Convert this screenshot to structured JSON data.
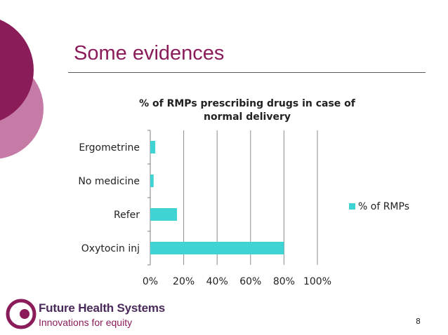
{
  "slide": {
    "title": "Some evidences",
    "page_number": "8",
    "brand_name": "Future Health Systems",
    "brand_tagline": "Innovations for equity"
  },
  "colors": {
    "accent": "#8a1c5a",
    "accent_light": "#c67aa6",
    "bar": "#3fd3d3"
  },
  "chart_data": {
    "type": "bar",
    "orientation": "horizontal",
    "title": "% of RMPs prescribing drugs in case of normal delivery",
    "title_lines": [
      "% of RMPs prescribing drugs in case of",
      "normal delivery"
    ],
    "categories": [
      "Ergometrine",
      "No medicine",
      "Refer",
      "Oxytocin inj"
    ],
    "series": [
      {
        "name": "% of RMPs",
        "values": [
          3,
          2,
          16,
          80
        ]
      }
    ],
    "xlim": [
      0,
      100
    ],
    "x_ticks": [
      "0%",
      "20%",
      "40%",
      "60%",
      "80%",
      "100%"
    ],
    "grid": true,
    "legend_position": "right"
  }
}
